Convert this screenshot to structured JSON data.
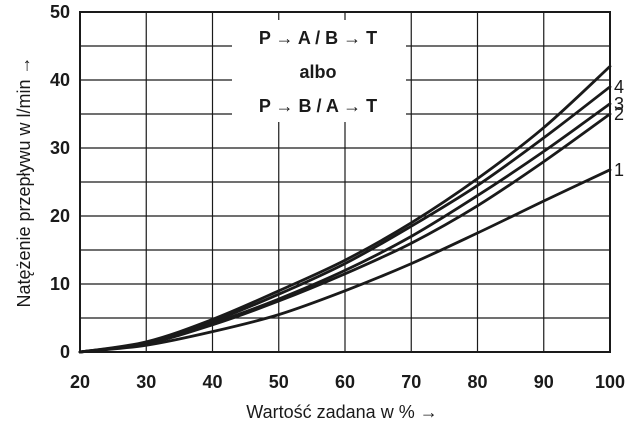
{
  "chart_data": {
    "type": "line",
    "title": "",
    "xlabel": "Wartość zadana w % →",
    "ylabel": "Natężenie przepływu w l/min →",
    "xlim": [
      20,
      100
    ],
    "ylim": [
      0,
      50
    ],
    "x_ticks": [
      "20",
      "30",
      "40",
      "50",
      "60",
      "70",
      "80",
      "90",
      "100"
    ],
    "y_ticks": [
      "0",
      "10",
      "20",
      "30",
      "40",
      "50"
    ],
    "grid": true,
    "annotation": {
      "line1": "P → A / B → T",
      "line2": "albo",
      "line3": "P → B / A → T"
    },
    "x": [
      20,
      30,
      40,
      50,
      60,
      70,
      80,
      90,
      100
    ],
    "series": [
      {
        "name": "1",
        "values": [
          0,
          1,
          3,
          5.5,
          9,
          13,
          17.5,
          22.2,
          26.8
        ]
      },
      {
        "name": "2",
        "values": [
          0,
          1.2,
          4,
          7.5,
          11.5,
          16,
          21.5,
          28,
          35
        ]
      },
      {
        "name": "3",
        "values": [
          0,
          1.3,
          4.2,
          7.8,
          12,
          17,
          23,
          29.5,
          36.5
        ]
      },
      {
        "name": "4",
        "values": [
          0,
          1.4,
          4.5,
          8.5,
          13,
          18.5,
          24.5,
          31.5,
          39
        ]
      },
      {
        "name": "",
        "values": [
          0,
          1.5,
          4.8,
          9,
          13.5,
          19,
          25.5,
          33,
          42
        ]
      }
    ]
  }
}
